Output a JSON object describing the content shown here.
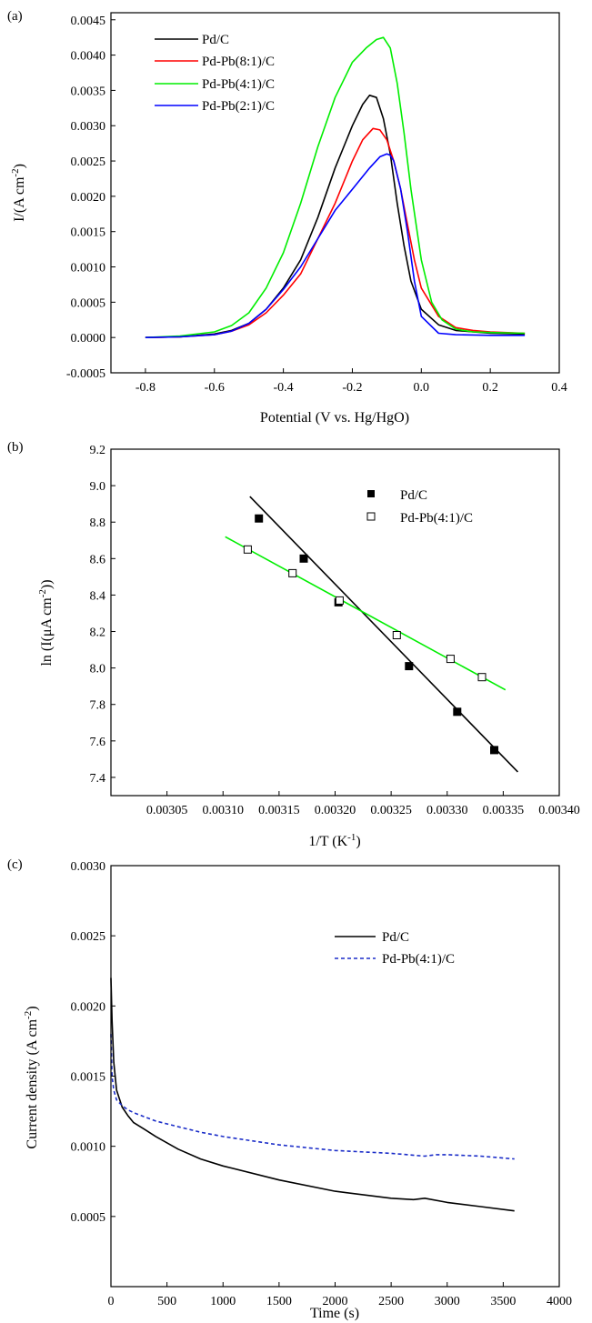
{
  "chart_data": [
    {
      "panel_label": "(a)",
      "type": "line",
      "title": "",
      "xlabel": "Potential (V vs. Hg/HgO)",
      "ylabel_main": "I/(A cm",
      "ylabel_sup": "-2",
      "ylabel_tail": ")",
      "xlim": [
        -0.9,
        0.4
      ],
      "ylim": [
        -0.0005,
        0.0046
      ],
      "xticks": [
        -0.8,
        -0.6,
        -0.4,
        -0.2,
        0.0,
        0.2,
        0.4
      ],
      "xtick_labels": [
        "-0.8",
        "-0.6",
        "-0.4",
        "-0.2",
        "0.0",
        "0.2",
        "0.4"
      ],
      "yticks": [
        -0.0005,
        0.0,
        0.0005,
        0.001,
        0.0015,
        0.002,
        0.0025,
        0.003,
        0.0035,
        0.004,
        0.0045
      ],
      "ytick_labels": [
        "-0.0005",
        "0.0000",
        "0.0005",
        "0.0010",
        "0.0015",
        "0.0020",
        "0.0025",
        "0.0030",
        "0.0035",
        "0.0040",
        "0.0045"
      ],
      "legend_position": "top-left",
      "series": [
        {
          "name": "Pd/C",
          "color": "#000000",
          "x": [
            -0.8,
            -0.7,
            -0.6,
            -0.55,
            -0.5,
            -0.45,
            -0.4,
            -0.35,
            -0.3,
            -0.25,
            -0.2,
            -0.17,
            -0.15,
            -0.13,
            -0.11,
            -0.09,
            -0.07,
            -0.05,
            -0.03,
            0.0,
            0.05,
            0.1,
            0.15,
            0.2,
            0.3
          ],
          "y": [
            0.0,
            1e-05,
            5e-05,
            0.0001,
            0.0002,
            0.0004,
            0.0007,
            0.0011,
            0.0017,
            0.0024,
            0.003,
            0.0033,
            0.00343,
            0.0034,
            0.0031,
            0.0026,
            0.0019,
            0.0013,
            0.0008,
            0.0004,
            0.00018,
            0.0001,
            8e-05,
            6e-05,
            5e-05
          ]
        },
        {
          "name": "Pd-Pb(8:1)/C",
          "color": "#ff0000",
          "x": [
            -0.8,
            -0.7,
            -0.6,
            -0.55,
            -0.5,
            -0.45,
            -0.4,
            -0.35,
            -0.3,
            -0.25,
            -0.2,
            -0.17,
            -0.14,
            -0.12,
            -0.1,
            -0.08,
            -0.06,
            -0.04,
            -0.02,
            0.0,
            0.05,
            0.1,
            0.15,
            0.2,
            0.3
          ],
          "y": [
            0.0,
            1e-05,
            4e-05,
            9e-05,
            0.00018,
            0.00035,
            0.0006,
            0.0009,
            0.0014,
            0.0019,
            0.0025,
            0.0028,
            0.00296,
            0.00294,
            0.0028,
            0.0025,
            0.0021,
            0.0016,
            0.0011,
            0.0007,
            0.0003,
            0.00014,
            0.0001,
            8e-05,
            6e-05
          ]
        },
        {
          "name": "Pd-Pb(4:1)/C",
          "color": "#00ee00",
          "x": [
            -0.8,
            -0.7,
            -0.6,
            -0.55,
            -0.5,
            -0.45,
            -0.4,
            -0.35,
            -0.3,
            -0.25,
            -0.2,
            -0.16,
            -0.13,
            -0.11,
            -0.09,
            -0.07,
            -0.05,
            -0.03,
            0.0,
            0.03,
            0.06,
            0.1,
            0.15,
            0.2,
            0.3
          ],
          "y": [
            0.0,
            2e-05,
            8e-05,
            0.00017,
            0.00035,
            0.0007,
            0.0012,
            0.0019,
            0.0027,
            0.0034,
            0.0039,
            0.0041,
            0.00422,
            0.00425,
            0.0041,
            0.0036,
            0.0029,
            0.0021,
            0.0011,
            0.0005,
            0.00025,
            0.00012,
            8e-05,
            7e-05,
            6e-05
          ]
        },
        {
          "name": "Pd-Pb(2:1)/C",
          "color": "#0000ff",
          "x": [
            -0.8,
            -0.7,
            -0.6,
            -0.55,
            -0.5,
            -0.45,
            -0.4,
            -0.35,
            -0.3,
            -0.25,
            -0.2,
            -0.15,
            -0.12,
            -0.1,
            -0.09,
            -0.08,
            -0.06,
            -0.04,
            -0.02,
            0.0,
            0.05,
            0.1,
            0.2,
            0.3
          ],
          "y": [
            0.0,
            1e-05,
            4e-05,
            9e-05,
            0.0002,
            0.0004,
            0.00068,
            0.001,
            0.0014,
            0.0018,
            0.0021,
            0.0024,
            0.00256,
            0.0026,
            0.00258,
            0.0025,
            0.0021,
            0.0015,
            0.0008,
            0.0003,
            6e-05,
            4e-05,
            3e-05,
            3e-05
          ]
        }
      ]
    },
    {
      "panel_label": "(b)",
      "type": "scatter",
      "title": "",
      "xlabel_main": "1/T (K",
      "xlabel_sup": "-1",
      "xlabel_tail": ")",
      "ylabel_main": "ln (I(μA cm",
      "ylabel_sup": "-2",
      "ylabel_tail": "))",
      "xlim": [
        0.003,
        0.0034
      ],
      "ylim": [
        7.3,
        9.2
      ],
      "xticks": [
        0.00305,
        0.0031,
        0.00315,
        0.0032,
        0.00325,
        0.0033,
        0.00335,
        0.0034
      ],
      "xtick_labels": [
        "0.00305",
        "0.00310",
        "0.00315",
        "0.00320",
        "0.00325",
        "0.00330",
        "0.00335",
        "0.00340"
      ],
      "yticks": [
        7.4,
        7.6,
        7.8,
        8.0,
        8.2,
        8.4,
        8.6,
        8.8,
        9.0,
        9.2
      ],
      "ytick_labels": [
        "7.4",
        "7.6",
        "7.8",
        "8.0",
        "8.2",
        "8.4",
        "8.6",
        "8.8",
        "9.0",
        "9.2"
      ],
      "legend_position": "top-right",
      "series": [
        {
          "name": "Pd/C",
          "marker": "filled-square",
          "color": "#000000",
          "fit_color": "#000000",
          "x": [
            0.003132,
            0.003172,
            0.003203,
            0.003266,
            0.003309,
            0.003342
          ],
          "y": [
            8.82,
            8.6,
            8.36,
            8.01,
            7.76,
            7.55
          ],
          "fit_x": [
            0.003124,
            0.003363
          ],
          "fit_y": [
            8.94,
            7.43
          ]
        },
        {
          "name": "Pd-Pb(4:1)/C",
          "marker": "open-square",
          "color": "#000000",
          "fit_color": "#00ee00",
          "x": [
            0.003122,
            0.003162,
            0.003204,
            0.003255,
            0.003303,
            0.003331
          ],
          "y": [
            8.65,
            8.52,
            8.37,
            8.18,
            8.05,
            7.95
          ],
          "fit_x": [
            0.003102,
            0.003352
          ],
          "fit_y": [
            8.72,
            7.88
          ]
        }
      ]
    },
    {
      "panel_label": "(c)",
      "type": "line",
      "title": "",
      "xlabel": "Time (s)",
      "ylabel_main": "Current density (A cm",
      "ylabel_sup": "-2",
      "ylabel_tail": ")",
      "xlim": [
        0,
        4000
      ],
      "ylim": [
        0.0,
        0.003
      ],
      "xticks": [
        0,
        500,
        1000,
        1500,
        2000,
        2500,
        3000,
        3500,
        4000
      ],
      "xtick_labels": [
        "0",
        "500",
        "1000",
        "1500",
        "2000",
        "2500",
        "3000",
        "3500",
        "4000"
      ],
      "yticks": [
        0.0005,
        0.001,
        0.0015,
        0.002,
        0.0025,
        0.003
      ],
      "ytick_labels": [
        "0.0005",
        "0.0010",
        "0.0015",
        "0.0020",
        "0.0025",
        "0.0030"
      ],
      "legend_position": "top-right",
      "series": [
        {
          "name": "Pd/C",
          "color": "#000000",
          "dash": "solid",
          "x": [
            0,
            10,
            25,
            50,
            100,
            150,
            200,
            300,
            400,
            600,
            800,
            1000,
            1500,
            2000,
            2500,
            2700,
            2800,
            3000,
            3300,
            3600
          ],
          "y": [
            0.0022,
            0.0019,
            0.0016,
            0.0014,
            0.00128,
            0.00122,
            0.00117,
            0.00112,
            0.00107,
            0.00098,
            0.00091,
            0.00086,
            0.00076,
            0.00068,
            0.00063,
            0.00062,
            0.00063,
            0.0006,
            0.00057,
            0.00054
          ]
        },
        {
          "name": "Pd-Pb(4:1)/C",
          "color": "#1a2cc8",
          "dash": "dashed",
          "x": [
            0,
            10,
            25,
            50,
            100,
            150,
            200,
            300,
            400,
            600,
            800,
            1000,
            1500,
            2000,
            2500,
            2800,
            2900,
            3000,
            3300,
            3600
          ],
          "y": [
            0.0018,
            0.0015,
            0.0014,
            0.00133,
            0.00129,
            0.00126,
            0.00124,
            0.00121,
            0.00118,
            0.00114,
            0.0011,
            0.00107,
            0.00101,
            0.00097,
            0.00095,
            0.00093,
            0.00094,
            0.00094,
            0.00093,
            0.00091
          ]
        }
      ]
    }
  ]
}
